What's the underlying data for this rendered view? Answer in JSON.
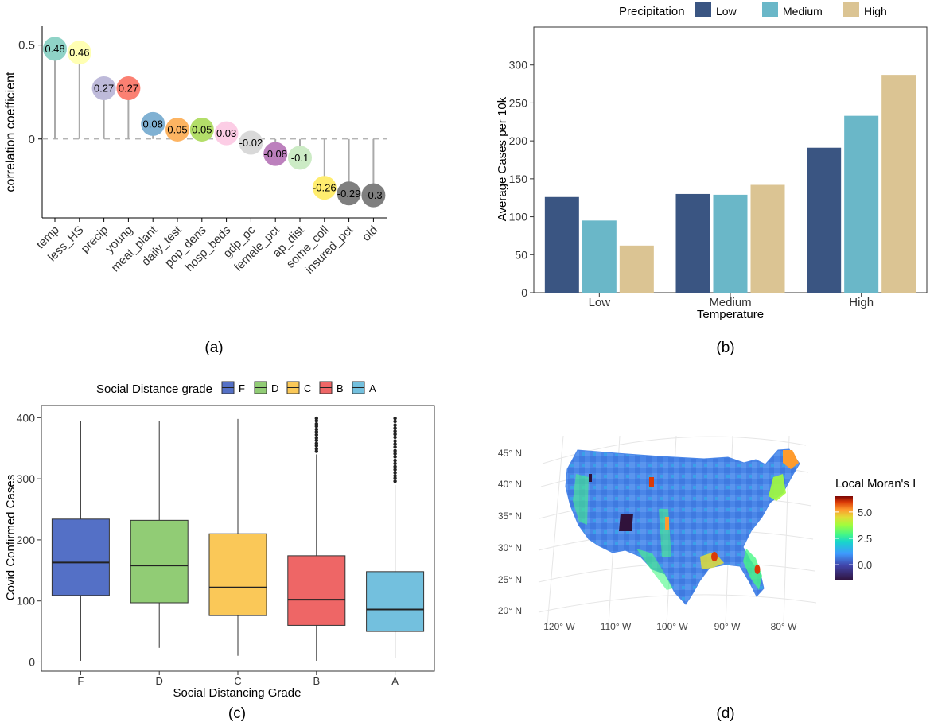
{
  "panels": [
    {
      "id": "a",
      "label": "(a)"
    },
    {
      "id": "b",
      "label": "(b)"
    },
    {
      "id": "c",
      "label": "(c)"
    },
    {
      "id": "d",
      "label": "(d)"
    }
  ],
  "chart_data": [
    {
      "panel": "a",
      "type": "lollipop",
      "xlabel": "",
      "ylabel": "correlation coefficient",
      "ylim": [
        -0.42,
        0.6
      ],
      "yticks": [
        0.5,
        0
      ],
      "ytick_labels": [
        "0.5",
        "0"
      ],
      "reference_line": 0,
      "categories": [
        "temp",
        "less_HS",
        "precip",
        "young",
        "meat_plant",
        "daily_test",
        "pop_dens",
        "hosp_beds",
        "gdp_pc",
        "female_pct",
        "ap_dist",
        "some_coll",
        "insured_pct",
        "old"
      ],
      "values": [
        0.48,
        0.46,
        0.27,
        0.27,
        0.08,
        0.05,
        0.05,
        0.03,
        -0.02,
        -0.08,
        -0.1,
        -0.26,
        -0.29,
        -0.3
      ],
      "value_labels": [
        "0.48",
        "0.46",
        "0.27",
        "0.27",
        "0.08",
        "0.05",
        "0.05",
        "0.03",
        "-0.02",
        "-0.08",
        "-0.1",
        "-0.26",
        "-0.29",
        "-0.3"
      ],
      "colors": [
        "#8fd3c7",
        "#ffffb3",
        "#bebada",
        "#fb8072",
        "#80b1d3",
        "#fdb462",
        "#b3de69",
        "#fccde5",
        "#d9d9d9",
        "#bc80bd",
        "#ccebc5",
        "#ffed6f",
        "#7f7f7f",
        "#7f7f7f"
      ]
    },
    {
      "panel": "b",
      "type": "bar",
      "title": "",
      "xlabel": "Temperature",
      "ylabel": "Average Cases per 10k",
      "categories": [
        "Low",
        "Medium",
        "High"
      ],
      "legend_title": "Precipitation",
      "legend_position": "top",
      "ylim": [
        0,
        350
      ],
      "yticks": [
        0,
        50,
        100,
        150,
        200,
        250,
        300
      ],
      "series": [
        {
          "name": "Low",
          "color": "#3a5582",
          "values": [
            126,
            130,
            191
          ]
        },
        {
          "name": "Medium",
          "color": "#6ab7c8",
          "values": [
            95,
            129,
            233
          ]
        },
        {
          "name": "High",
          "color": "#dbc493",
          "values": [
            62,
            142,
            287
          ]
        }
      ]
    },
    {
      "panel": "c",
      "type": "box",
      "xlabel": "Social Distancing Grade",
      "ylabel": "Covid Confirmed Cases",
      "legend_title": "Social Distance grade",
      "legend_position": "top",
      "ylim": [
        -15,
        420
      ],
      "yticks": [
        0,
        100,
        200,
        300,
        400
      ],
      "categories": [
        "F",
        "D",
        "C",
        "B",
        "A"
      ],
      "legend_order": [
        "F",
        "D",
        "C",
        "B",
        "A"
      ],
      "colors": [
        "#5470c6",
        "#91cc75",
        "#fac858",
        "#ee6666",
        "#73c0de"
      ],
      "boxes": [
        {
          "min": 2,
          "q1": 109,
          "median": 163,
          "q3": 234,
          "max": 395,
          "outliers": []
        },
        {
          "min": 23,
          "q1": 97,
          "median": 158,
          "q3": 232,
          "max": 395,
          "outliers": []
        },
        {
          "min": 10,
          "q1": 76,
          "median": 122,
          "q3": 210,
          "max": 398,
          "outliers": []
        },
        {
          "min": 2,
          "q1": 60,
          "median": 102,
          "q3": 174,
          "max": 340,
          "outliers": [
            345,
            349,
            354,
            358,
            363,
            367,
            372,
            377,
            381,
            386,
            390,
            395,
            399
          ]
        },
        {
          "min": 6,
          "q1": 50,
          "median": 86,
          "q3": 148,
          "max": 290,
          "outliers": [
            296,
            301,
            305,
            310,
            315,
            320,
            325,
            330,
            336,
            341,
            346,
            352,
            357,
            362,
            368,
            373,
            378,
            383,
            388,
            394,
            399
          ]
        }
      ]
    },
    {
      "panel": "d",
      "type": "map",
      "title": "",
      "legend_title": "Local Moran's I",
      "legend_ticks": [
        "5.0",
        "2.5",
        "0.0"
      ],
      "legend_range": [
        -1.5,
        6.5
      ],
      "lat_labels": [
        "45° N",
        "40° N",
        "35° N",
        "30° N",
        "25° N",
        "20° N"
      ],
      "lon_labels": [
        "120° W",
        "110° W",
        "100° W",
        "90° W",
        "80° W"
      ],
      "colors": {
        "low": "#30123b",
        "mid_low": "#3e9bfe",
        "mid": "#46f884",
        "mid_high": "#fe9b2d",
        "high": "#7a0403"
      }
    }
  ]
}
